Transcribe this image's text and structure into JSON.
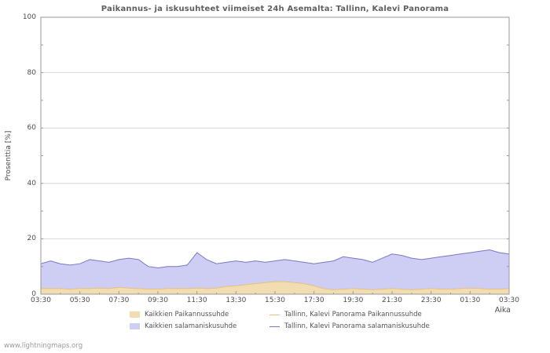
{
  "watermark": "www.lightningmaps.org",
  "chart_data": {
    "type": "area",
    "title": "Paikannus- ja iskusuhteet viimeiset 24h Asemalta: Tallinn, Kalevi Panorama",
    "ylabel": "Prosenttia  [%]",
    "xlabel": "Aika",
    "ylim": [
      0,
      100
    ],
    "y_ticks": [
      0,
      20,
      40,
      60,
      80,
      100
    ],
    "x_tick_labels": [
      "03:30",
      "05:30",
      "07:30",
      "09:30",
      "11:30",
      "13:30",
      "15:30",
      "17:30",
      "19:30",
      "21:30",
      "23:30",
      "01:30",
      "03:30"
    ],
    "grid": true,
    "legend_position": "bottom",
    "colors": {
      "tan_area": "#f2ddb0",
      "tan_line": "#e3c27f",
      "purple_area": "#cecef5",
      "purple_line": "#7878c4",
      "gridline": "#cfcfcf",
      "frame": "#9a9a9a"
    },
    "series": [
      {
        "name": "Kaikkien Paikannussuhde",
        "style": "area",
        "color": "#f2ddb0",
        "values": [
          2,
          2,
          2,
          1.8,
          2,
          2,
          2.2,
          2,
          2.5,
          2.2,
          2,
          1.8,
          1.8,
          2,
          2,
          2,
          2.2,
          2,
          2.2,
          2.8,
          3,
          3.4,
          3.8,
          4.2,
          4.5,
          4.5,
          4.2,
          3.8,
          3,
          2,
          1.6,
          1.8,
          2,
          1.8,
          1.6,
          1.8,
          2,
          1.8,
          1.6,
          1.8,
          2,
          1.8,
          1.8,
          2,
          2.2,
          2,
          1.8,
          1.8,
          2
        ]
      },
      {
        "name": "Tallinn, Kalevi Panorama Paikannussuhde",
        "style": "line",
        "color": "#e3c27f",
        "values": [
          2,
          2,
          2,
          1.8,
          2,
          2,
          2.2,
          2,
          2.5,
          2.2,
          2,
          1.8,
          1.8,
          2,
          2,
          2,
          2.2,
          2,
          2.2,
          2.8,
          3,
          3.4,
          3.8,
          4.2,
          4.5,
          4.5,
          4.2,
          3.8,
          3,
          2,
          1.6,
          1.8,
          2,
          1.8,
          1.6,
          1.8,
          2,
          1.8,
          1.6,
          1.8,
          2,
          1.8,
          1.8,
          2,
          2.2,
          2,
          1.8,
          1.8,
          2
        ]
      },
      {
        "name": "Kaikkien salamaniskusuhde",
        "style": "area",
        "color": "#cecef5",
        "values": [
          11,
          12,
          11,
          10.5,
          11,
          12.5,
          12,
          11.5,
          12.5,
          13,
          12.5,
          10,
          9.5,
          10,
          10,
          10.5,
          15,
          12.5,
          11,
          11.5,
          12,
          11.5,
          12,
          11.5,
          12,
          12.5,
          12,
          11.5,
          11,
          11.5,
          12,
          13.5,
          13,
          12.5,
          11.5,
          13,
          14.5,
          14,
          13,
          12.5,
          13,
          13.5,
          14,
          14.5,
          15,
          15.5,
          16,
          15,
          14.5
        ]
      },
      {
        "name": "Tallinn, Kalevi Panorama salamaniskusuhde",
        "style": "line",
        "color": "#7878c4",
        "values": [
          11,
          12,
          11,
          10.5,
          11,
          12.5,
          12,
          11.5,
          12.5,
          13,
          12.5,
          10,
          9.5,
          10,
          10,
          10.5,
          15,
          12.5,
          11,
          11.5,
          12,
          11.5,
          12,
          11.5,
          12,
          12.5,
          12,
          11.5,
          11,
          11.5,
          12,
          13.5,
          13,
          12.5,
          11.5,
          13,
          14.5,
          14,
          13,
          12.5,
          13,
          13.5,
          14,
          14.5,
          15,
          15.5,
          16,
          15,
          14.5
        ]
      }
    ]
  }
}
